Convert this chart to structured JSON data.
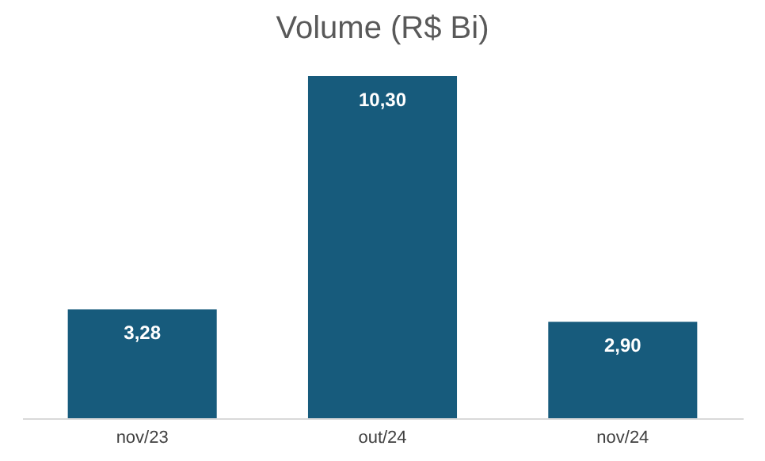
{
  "chart_data": {
    "type": "bar",
    "title": "Volume (R$ Bi)",
    "categories": [
      "nov/23",
      "out/24",
      "nov/24"
    ],
    "values": [
      3.28,
      10.3,
      2.9
    ],
    "value_labels": [
      "3,28",
      "10,30",
      "2,90"
    ],
    "color": "#175b7c",
    "grid": false
  }
}
